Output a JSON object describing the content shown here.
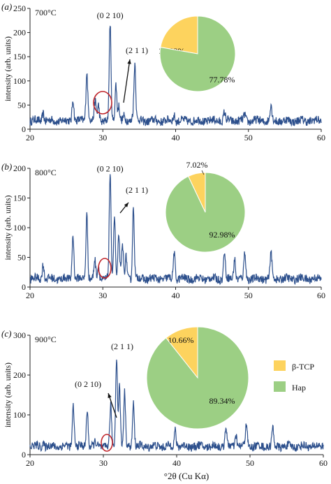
{
  "chart_data": [
    {
      "type": "line",
      "panel_label": "(a)",
      "temperature": "700°C",
      "ylabel": "intensity (arb. units)",
      "xlim": [
        20,
        60
      ],
      "ylim": [
        0,
        250
      ],
      "xticks": [
        "20",
        "30",
        "40",
        "50",
        "60"
      ],
      "yticks": [
        "0",
        "50",
        "100",
        "150",
        "200",
        "250"
      ],
      "peaks": [
        {
          "x": 21.8,
          "y": 35
        },
        {
          "x": 25.9,
          "y": 65
        },
        {
          "x": 28.1,
          "y": 30
        },
        {
          "x": 28.9,
          "y": 38
        },
        {
          "x": 29.0,
          "y": 40
        },
        {
          "x": 29.4,
          "y": 50
        },
        {
          "x": 31.8,
          "y": 95
        },
        {
          "x": 32.2,
          "y": 50
        },
        {
          "x": 32.9,
          "y": 25
        },
        {
          "x": 34.1,
          "y": 30
        },
        {
          "x": 39.8,
          "y": 30
        },
        {
          "x": 46.7,
          "y": 35
        },
        {
          "x": 49.5,
          "y": 30
        },
        {
          "x": 53.1,
          "y": 50
        }
      ],
      "main_peaks": [
        {
          "x": 27.8,
          "y": 120
        },
        {
          "x": 31.0,
          "y": 218
        },
        {
          "x": 34.4,
          "y": 138
        }
      ],
      "annotations": [
        {
          "text": "(0 2 10)",
          "x": 31.0,
          "y": 230
        },
        {
          "text": "(2 1 1)",
          "x": 33.5,
          "y": 150
        }
      ],
      "pie": [
        {
          "label": "β-TCP",
          "value": 22.22,
          "text": "22.22%"
        },
        {
          "label": "Hap",
          "value": 77.78,
          "text": "77.78%"
        }
      ]
    },
    {
      "type": "line",
      "panel_label": "(b)",
      "temperature": "800°C",
      "ylabel": "intensity (arb. units)",
      "xlim": [
        20,
        60
      ],
      "ylim": [
        0,
        200
      ],
      "xticks": [
        "20",
        "30",
        "40",
        "50",
        "60"
      ],
      "yticks": [
        "0",
        "50",
        "100",
        "150",
        "200"
      ],
      "peaks": [
        {
          "x": 21.8,
          "y": 40
        },
        {
          "x": 25.9,
          "y": 90
        },
        {
          "x": 27.8,
          "y": 125
        },
        {
          "x": 28.9,
          "y": 45
        },
        {
          "x": 29.4,
          "y": 35
        },
        {
          "x": 31.0,
          "y": 190
        },
        {
          "x": 31.6,
          "y": 120
        },
        {
          "x": 32.2,
          "y": 90
        },
        {
          "x": 32.7,
          "y": 70
        },
        {
          "x": 33.2,
          "y": 50
        },
        {
          "x": 34.2,
          "y": 135
        },
        {
          "x": 39.8,
          "y": 60
        },
        {
          "x": 46.7,
          "y": 60
        },
        {
          "x": 48.1,
          "y": 50
        },
        {
          "x": 49.5,
          "y": 60
        },
        {
          "x": 53.1,
          "y": 60
        }
      ],
      "annotations": [
        {
          "text": "(0 2 10)",
          "x": 31.0,
          "y": 195
        },
        {
          "text": "(2 1 1)",
          "x": 33.5,
          "y": 155
        }
      ],
      "pie": [
        {
          "label": "β-TCP",
          "value": 7.02,
          "text": "7.02%"
        },
        {
          "label": "Hap",
          "value": 92.98,
          "text": "92.98%"
        }
      ]
    },
    {
      "type": "line",
      "panel_label": "(c)",
      "temperature": "900°C",
      "ylabel": "intensity (arb. units)",
      "xlabel": "°2θ (Cu Kα)",
      "xlim": [
        20,
        60
      ],
      "ylim": [
        0,
        300
      ],
      "xticks": [
        "20",
        "30",
        "40",
        "50",
        "60"
      ],
      "yticks": [
        "0",
        "100",
        "200",
        "300"
      ],
      "peaks": [
        {
          "x": 21.8,
          "y": 30
        },
        {
          "x": 25.9,
          "y": 125
        },
        {
          "x": 27.8,
          "y": 115
        },
        {
          "x": 28.9,
          "y": 30
        },
        {
          "x": 31.0,
          "y": 120
        },
        {
          "x": 31.8,
          "y": 250
        },
        {
          "x": 32.2,
          "y": 175
        },
        {
          "x": 32.9,
          "y": 155
        },
        {
          "x": 34.1,
          "y": 130
        },
        {
          "x": 39.8,
          "y": 65
        },
        {
          "x": 46.7,
          "y": 70
        },
        {
          "x": 48.1,
          "y": 50
        },
        {
          "x": 49.5,
          "y": 80
        },
        {
          "x": 53.1,
          "y": 65
        }
      ],
      "annotations": [
        {
          "text": "(2 1 1)",
          "x": 31.8,
          "y": 270
        },
        {
          "text": "(0 2 10)",
          "x": 29.5,
          "y": 205
        }
      ],
      "pie": [
        {
          "label": "β-TCP",
          "value": 10.66,
          "text": "10.66%"
        },
        {
          "label": "Hap",
          "value": 89.34,
          "text": "89.34%"
        }
      ],
      "legend": [
        {
          "label": "β-TCP",
          "color": "#fdd35e"
        },
        {
          "label": "Hap",
          "color": "#9ccf84"
        }
      ]
    }
  ],
  "colors": {
    "trace": "#2c4f8c",
    "circle": "#c0262c",
    "tcp": "#fdd35e",
    "hap": "#9ccf84"
  }
}
